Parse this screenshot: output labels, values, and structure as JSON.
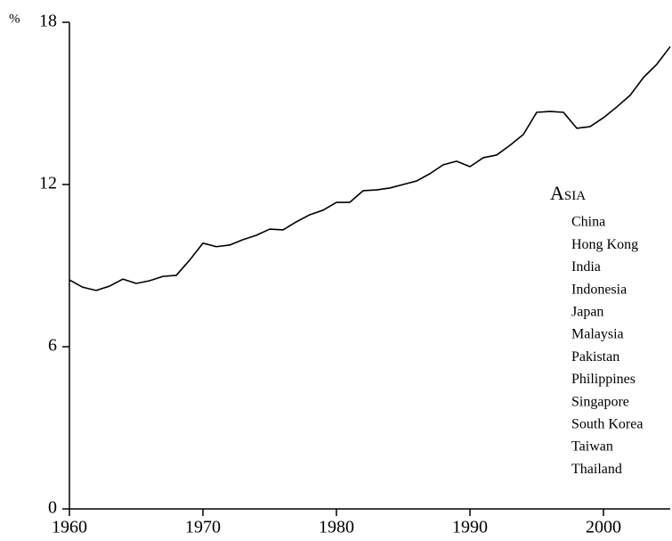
{
  "chart_data": {
    "type": "line",
    "y_unit": "%",
    "x": [
      1960,
      1961,
      1962,
      1963,
      1964,
      1965,
      1966,
      1967,
      1968,
      1969,
      1970,
      1971,
      1972,
      1973,
      1974,
      1975,
      1976,
      1977,
      1978,
      1979,
      1980,
      1981,
      1982,
      1983,
      1984,
      1985,
      1986,
      1987,
      1988,
      1989,
      1990,
      1991,
      1992,
      1993,
      1994,
      1995,
      1996,
      1997,
      1998,
      1999,
      2000,
      2001,
      2002,
      2003,
      2004,
      2005
    ],
    "series": [
      {
        "color": "#000000",
        "values": [
          8.47,
          8.2,
          8.08,
          8.24,
          8.5,
          8.34,
          8.44,
          8.6,
          8.64,
          9.2,
          9.83,
          9.7,
          9.76,
          9.96,
          10.12,
          10.35,
          10.32,
          10.62,
          10.88,
          11.05,
          11.34,
          11.34,
          11.77,
          11.8,
          11.87,
          12.0,
          12.13,
          12.4,
          12.73,
          12.86,
          12.66,
          12.99,
          13.09,
          13.45,
          13.85,
          14.67,
          14.7,
          14.67,
          14.08,
          14.14,
          14.47,
          14.87,
          15.3,
          15.96,
          16.45,
          17.1
        ]
      }
    ],
    "xlim": [
      1960,
      2005
    ],
    "xticks": [
      1960,
      1970,
      1980,
      1990,
      2000
    ],
    "ylim": [
      0,
      18
    ],
    "yticks": [
      0,
      6,
      12,
      18
    ],
    "grid": false,
    "annotation": {
      "title": "Asia",
      "items": [
        "China",
        "Hong Kong",
        "India",
        "Indonesia",
        "Japan",
        "Malaysia",
        "Pakistan",
        "Philippines",
        "Singapore",
        "South Korea",
        "Taiwan",
        "Thailand"
      ]
    }
  }
}
